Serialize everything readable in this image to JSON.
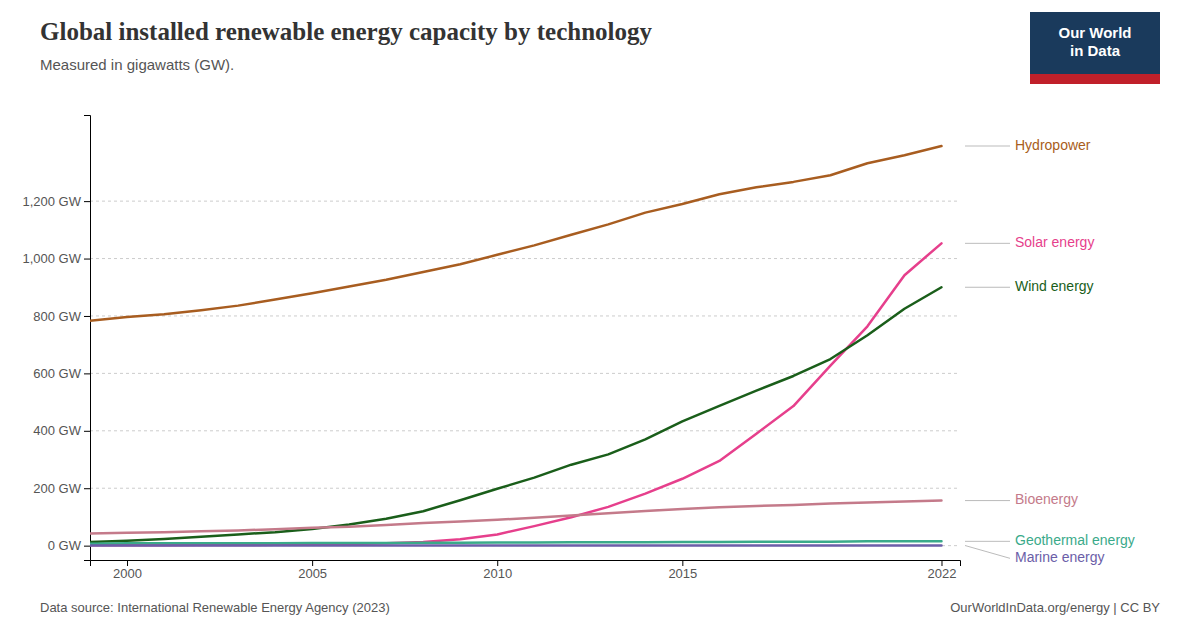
{
  "chart_data": {
    "type": "line",
    "title": "Global installed renewable energy capacity by technology",
    "subtitle": "Measured in gigawatts (GW).",
    "source": "Data source: International Renewable Energy Agency (2023)",
    "credit": "OurWorldInData.org/energy | CC BY",
    "logo": [
      "Our World",
      "in Data"
    ],
    "x": [
      1999,
      2000,
      2001,
      2002,
      2003,
      2004,
      2005,
      2006,
      2007,
      2008,
      2009,
      2010,
      2011,
      2012,
      2013,
      2014,
      2015,
      2016,
      2017,
      2018,
      2019,
      2020,
      2021,
      2022
    ],
    "series": [
      {
        "name": "Hydropower",
        "color": "#a85d20",
        "values": [
          783,
          796,
          806,
          820,
          836,
          857,
          879,
          903,
          926,
          953,
          980,
          1013,
          1046,
          1083,
          1119,
          1160,
          1190,
          1224,
          1248,
          1267,
          1290,
          1332,
          1360,
          1392
        ]
      },
      {
        "name": "Solar energy",
        "color": "#e63f8c",
        "values": [
          1,
          1,
          1,
          2,
          2,
          3,
          4,
          6,
          8,
          13,
          22,
          39,
          68,
          99,
          135,
          181,
          233,
          295,
          390,
          486,
          627,
          764,
          942,
          1053
        ]
      },
      {
        "name": "Wind energy",
        "color": "#1a5e1a",
        "values": [
          13,
          17,
          23,
          31,
          39,
          47,
          58,
          74,
          94,
          120,
          158,
          198,
          237,
          282,
          318,
          370,
          433,
          487,
          540,
          591,
          650,
          733,
          825,
          900
        ]
      },
      {
        "name": "Bioenergy",
        "color": "#c47a8a",
        "values": [
          42,
          45,
          47,
          50,
          53,
          57,
          62,
          66,
          72,
          79,
          84,
          90,
          97,
          105,
          113,
          121,
          128,
          134,
          138,
          142,
          147,
          150,
          154,
          157
        ]
      },
      {
        "name": "Geothermal energy",
        "color": "#3aaa8a",
        "values": [
          7,
          8,
          8,
          8,
          8,
          8,
          9,
          9,
          9,
          10,
          10,
          11,
          11,
          12,
          12,
          12,
          13,
          13,
          14,
          14,
          14,
          15,
          15,
          15
        ]
      },
      {
        "name": "Marine energy",
        "color": "#6b5ea8",
        "values": [
          0.3,
          0.3,
          0.3,
          0.3,
          0.3,
          0.3,
          0.3,
          0.3,
          0.3,
          0.3,
          0.3,
          0.5,
          0.5,
          0.5,
          0.5,
          0.5,
          0.5,
          0.5,
          0.5,
          0.5,
          0.5,
          0.5,
          0.5,
          0.5
        ]
      }
    ],
    "xlim": [
      1999,
      2022.5
    ],
    "ylim": [
      -50,
      1500
    ],
    "xticks": [
      2000,
      2005,
      2010,
      2015,
      2022
    ],
    "yticks": [
      {
        "value": 0,
        "label": "0 GW"
      },
      {
        "value": 200,
        "label": "200 GW"
      },
      {
        "value": 400,
        "label": "400 GW"
      },
      {
        "value": 600,
        "label": "600 GW"
      },
      {
        "value": 800,
        "label": "800 GW"
      },
      {
        "value": 1000,
        "label": "1,000 GW"
      },
      {
        "value": 1200,
        "label": "1,200 GW"
      }
    ],
    "grid": true
  }
}
